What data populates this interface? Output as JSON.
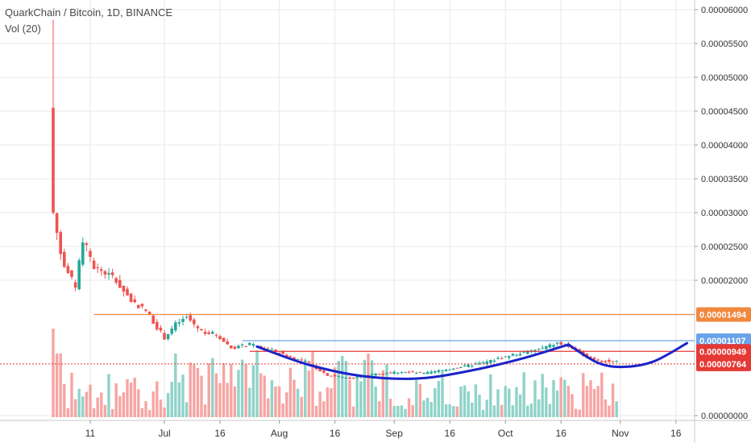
{
  "header": {
    "symbol_line": "QuarkChain / Bitcoin, 1D, BINANCE",
    "volume_line": "Vol (20)"
  },
  "colors": {
    "up": "#26a69a",
    "down": "#ef5350",
    "volume_up": "#8fd3c9",
    "volume_down": "#f6a5a3",
    "orange_line": "#f0883e",
    "blue_line": "#6aa3e8",
    "red_line": "#e53935",
    "curve": "#1a23c9",
    "grid": "#e8e8e8"
  },
  "chart_data": {
    "type": "candlestick",
    "title": "QuarkChain / Bitcoin, 1D, BINANCE",
    "ylim": [
      0,
      6e-05
    ],
    "y_ticks": [
      "0.00006000",
      "0.00005500",
      "0.00005000",
      "0.00004500",
      "0.00004000",
      "0.00003500",
      "0.00003000",
      "0.00002500",
      "0.00002000",
      "0.00000000"
    ],
    "x_ticks": [
      {
        "label": "11",
        "day": 11
      },
      {
        "label": "Jul",
        "day": 31
      },
      {
        "label": "16",
        "day": 46
      },
      {
        "label": "Aug",
        "day": 62
      },
      {
        "label": "16",
        "day": 77
      },
      {
        "label": "Sep",
        "day": 93
      },
      {
        "label": "16",
        "day": 108
      },
      {
        "label": "Oct",
        "day": 123
      },
      {
        "label": "16",
        "day": 138
      },
      {
        "label": "Nov",
        "day": 154
      },
      {
        "label": "16",
        "day": 169
      }
    ],
    "price_labels": [
      {
        "value": "0.00001494",
        "price": 1.494e-05,
        "color": "#f0883e"
      },
      {
        "value": "0.00001107",
        "price": 1.107e-05,
        "color": "#6aa3e8"
      },
      {
        "value": "0.00000949",
        "price": 9.49e-06,
        "color": "#e53935"
      },
      {
        "value": "0.00000764",
        "price": 7.64e-06,
        "color": "#e53935"
      }
    ],
    "horizontal_lines": [
      {
        "name": "orange-resistance",
        "price": 1.494e-05,
        "day_start": 12,
        "color": "#f0883e"
      },
      {
        "name": "blue-level",
        "price": 1.107e-05,
        "day_start": 52,
        "color": "#6aa3e8"
      },
      {
        "name": "red-level",
        "price": 9.49e-06,
        "day_start": 54,
        "color": "#e53935"
      },
      {
        "name": "current-price",
        "price": 7.64e-06,
        "day_start": 0,
        "color": "#e53935",
        "dotted": true
      }
    ],
    "cup_curve": [
      {
        "day": 56,
        "price": 1.02e-05
      },
      {
        "day": 70,
        "price": 7.5e-06
      },
      {
        "day": 85,
        "price": 5.8e-06
      },
      {
        "day": 100,
        "price": 5.5e-06
      },
      {
        "day": 115,
        "price": 6.8e-06
      },
      {
        "day": 128,
        "price": 8.5e-06
      },
      {
        "day": 140,
        "price": 1.05e-05
      }
    ],
    "handle_curve": [
      {
        "day": 140,
        "price": 1.05e-05
      },
      {
        "day": 148,
        "price": 7.8e-06
      },
      {
        "day": 155,
        "price": 7.2e-06
      },
      {
        "day": 163,
        "price": 8e-06
      },
      {
        "day": 172,
        "price": 1.07e-05
      }
    ],
    "anchors": [
      {
        "day": 1,
        "price": 4.55e-05
      },
      {
        "day": 2,
        "price": 3e-05
      },
      {
        "day": 4,
        "price": 2.4e-05
      },
      {
        "day": 6,
        "price": 2.1e-05
      },
      {
        "day": 8,
        "price": 1.9e-05
      },
      {
        "day": 10,
        "price": 2.6e-05
      },
      {
        "day": 13,
        "price": 2.2e-05
      },
      {
        "day": 18,
        "price": 2.05e-05
      },
      {
        "day": 23,
        "price": 1.7e-05
      },
      {
        "day": 27,
        "price": 1.55e-05
      },
      {
        "day": 32,
        "price": 1.15e-05
      },
      {
        "day": 35,
        "price": 1.35e-05
      },
      {
        "day": 38,
        "price": 1.45e-05
      },
      {
        "day": 42,
        "price": 1.25e-05
      },
      {
        "day": 46,
        "price": 1.2e-05
      },
      {
        "day": 50,
        "price": 1e-05
      },
      {
        "day": 55,
        "price": 1.05e-05
      },
      {
        "day": 60,
        "price": 9.8e-06
      },
      {
        "day": 65,
        "price": 8.8e-06
      },
      {
        "day": 70,
        "price": 8e-06
      },
      {
        "day": 76,
        "price": 6e-06
      },
      {
        "day": 82,
        "price": 5.5e-06
      },
      {
        "day": 90,
        "price": 6.2e-06
      },
      {
        "day": 96,
        "price": 6.5e-06
      },
      {
        "day": 102,
        "price": 6.2e-06
      },
      {
        "day": 110,
        "price": 7e-06
      },
      {
        "day": 118,
        "price": 7.8e-06
      },
      {
        "day": 126,
        "price": 9e-06
      },
      {
        "day": 133,
        "price": 9.8e-06
      },
      {
        "day": 138,
        "price": 1.07e-05
      },
      {
        "day": 142,
        "price": 1e-05
      },
      {
        "day": 146,
        "price": 8.7e-06
      },
      {
        "day": 150,
        "price": 8.1e-06
      },
      {
        "day": 153,
        "price": 7.9e-06
      }
    ]
  }
}
